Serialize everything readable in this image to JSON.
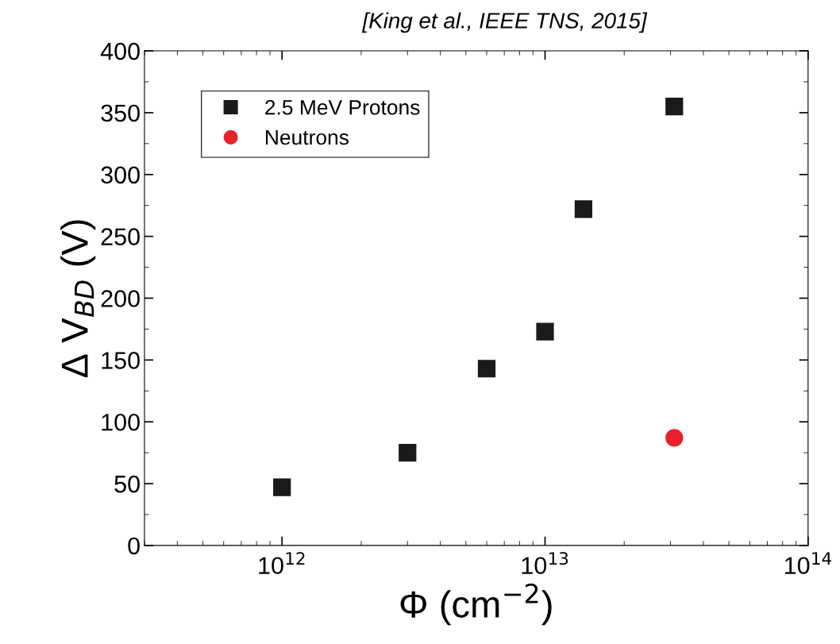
{
  "chart_data": {
    "type": "scatter",
    "xlabel": "Φ (cm$^{−2}$)",
    "ylabel": "Δ V$_{BD}$ (V)",
    "annotations": [
      "[King et al., IEEE TNS, 2015]"
    ],
    "log": "x",
    "xlim": [
      300000000000.0,
      100000000000000.0
    ],
    "xticks": [
      {
        "value": 1000000000000.0,
        "label": "10$^{12}$"
      },
      {
        "value": 10000000000000.0,
        "label": "10$^{13}$"
      },
      {
        "value": 100000000000000.0,
        "label": "10$^{14}$"
      }
    ],
    "ylim": [
      0,
      400
    ],
    "yticks": [
      0,
      50,
      100,
      150,
      200,
      250,
      300,
      350,
      400
    ],
    "legend": "top left",
    "grid": false,
    "series": [
      {
        "name": "2.5 MeV Protons",
        "color": "#1a1a1a",
        "marker": "square",
        "x": [
          1000000000000.0,
          3000000000000.0,
          6000000000000.0,
          10000000000000.0,
          14000000000000.0,
          31000000000000.0
        ],
        "values": [
          47,
          75,
          143,
          173,
          272,
          355
        ]
      },
      {
        "name": "Neutrons",
        "color": "#e8202a",
        "marker": "circle",
        "x": [
          31000000000000.0
        ],
        "values": [
          87
        ]
      }
    ]
  }
}
